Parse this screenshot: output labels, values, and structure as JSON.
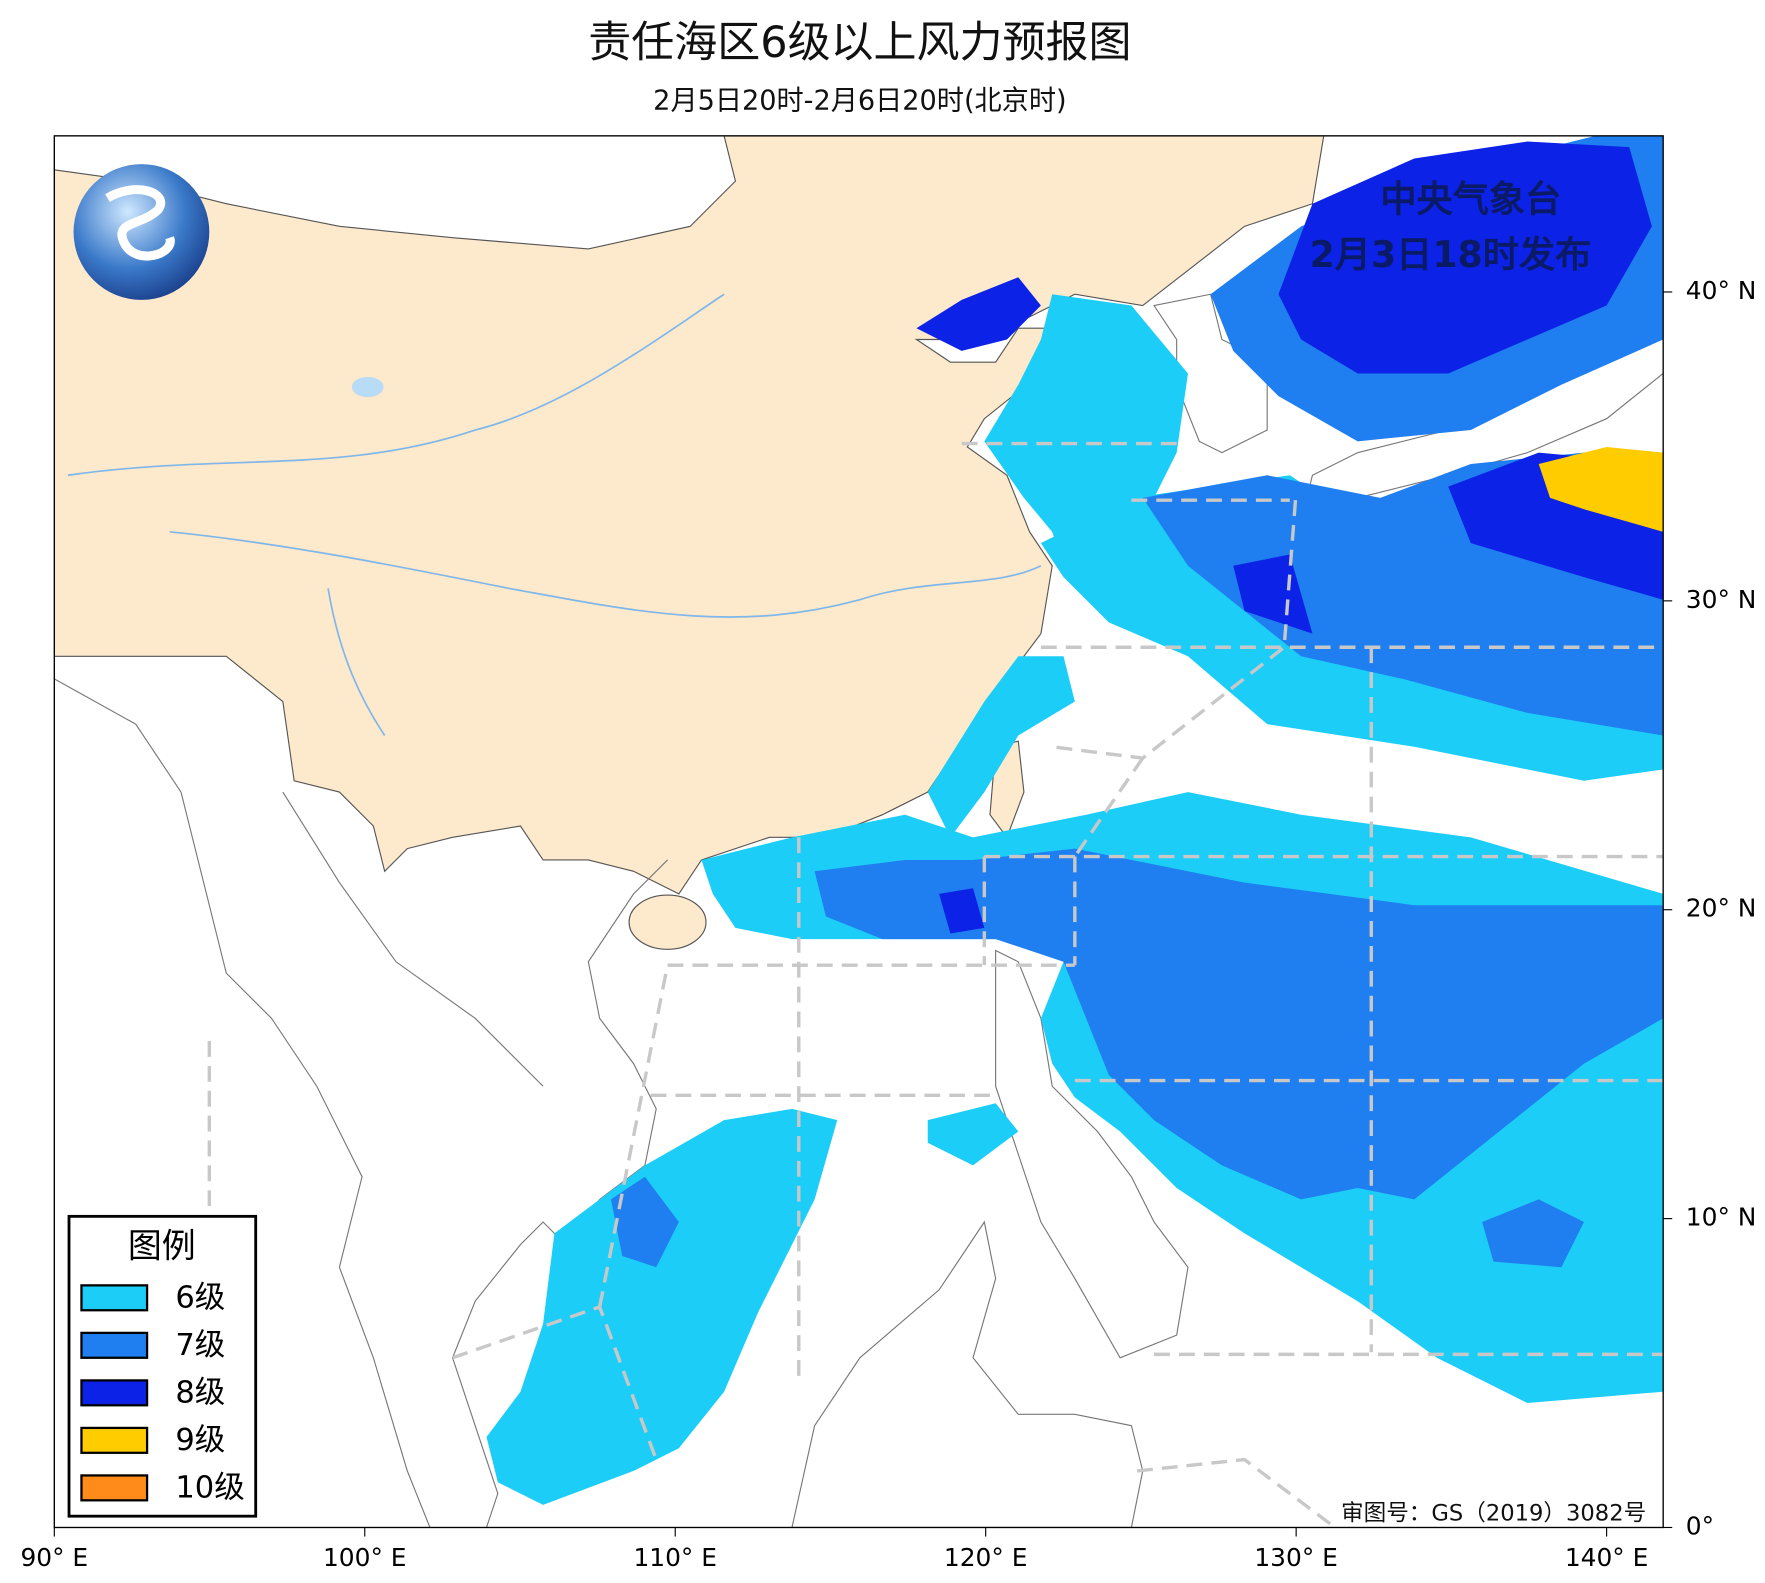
{
  "header": {
    "title": "责任海区6级以上风力预报图",
    "subtitle": "2月5日20时-2月6日20时(北京时)"
  },
  "stamp": {
    "issuer": "中央气象台",
    "issue_time": "2月3日18时发布"
  },
  "axes": {
    "lon_ticks": [
      {
        "value": 90,
        "label": "90° E"
      },
      {
        "value": 100,
        "label": "100° E"
      },
      {
        "value": 110,
        "label": "110° E"
      },
      {
        "value": 120,
        "label": "120° E"
      },
      {
        "value": 130,
        "label": "130° E"
      },
      {
        "value": 140,
        "label": "140° E"
      }
    ],
    "lat_ticks": [
      {
        "value": 0,
        "label": "0°"
      },
      {
        "value": 10,
        "label": "10° N"
      },
      {
        "value": 20,
        "label": "20° N"
      },
      {
        "value": 30,
        "label": "30° N"
      },
      {
        "value": 40,
        "label": "40° N"
      }
    ]
  },
  "legend": {
    "title": "图例",
    "items": [
      {
        "label": "6级",
        "color": "#1ccdf8"
      },
      {
        "label": "7级",
        "color": "#1f7ef0"
      },
      {
        "label": "8级",
        "color": "#0c22e6"
      },
      {
        "label": "9级",
        "color": "#ffcc00"
      },
      {
        "label": "10级",
        "color": "#ff8c1a"
      }
    ]
  },
  "footer": {
    "approval": "审图号：GS（2019）3082号"
  }
}
